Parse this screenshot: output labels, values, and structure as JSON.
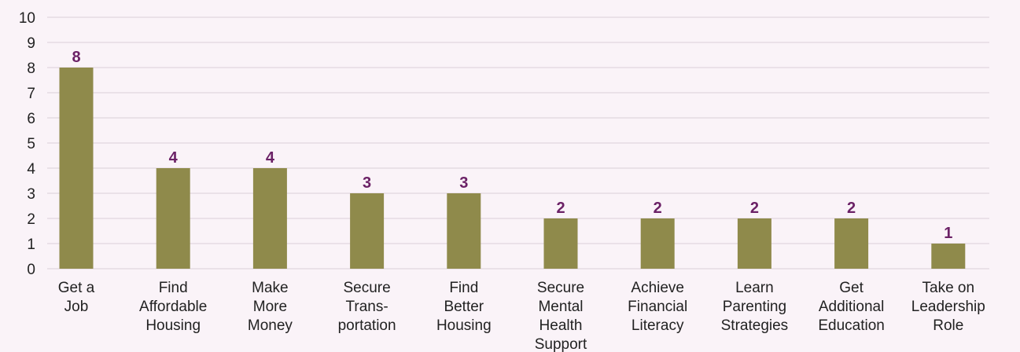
{
  "chart_data": {
    "type": "bar",
    "categories": [
      [
        "Get a",
        "Job"
      ],
      [
        "Find",
        "Affordable",
        "Housing"
      ],
      [
        "Make",
        "More",
        "Money"
      ],
      [
        "Secure",
        "Trans-",
        "portation"
      ],
      [
        "Find",
        "Better",
        "Housing"
      ],
      [
        "Secure",
        "Mental",
        "Health",
        "Support"
      ],
      [
        "Achieve",
        "Financial",
        "Literacy"
      ],
      [
        "Learn",
        "Parenting",
        "Strategies"
      ],
      [
        "Get",
        "Additional",
        "Education"
      ],
      [
        "Take on",
        "Leadership",
        "Role"
      ]
    ],
    "values": [
      8,
      4,
      4,
      3,
      3,
      2,
      2,
      2,
      2,
      1
    ],
    "color": "#8f8a4b",
    "label_color": "#6b2166",
    "ylim": [
      0,
      10
    ],
    "yticks": [
      0,
      1,
      2,
      3,
      4,
      5,
      6,
      7,
      8,
      9,
      10
    ],
    "grid": true
  }
}
